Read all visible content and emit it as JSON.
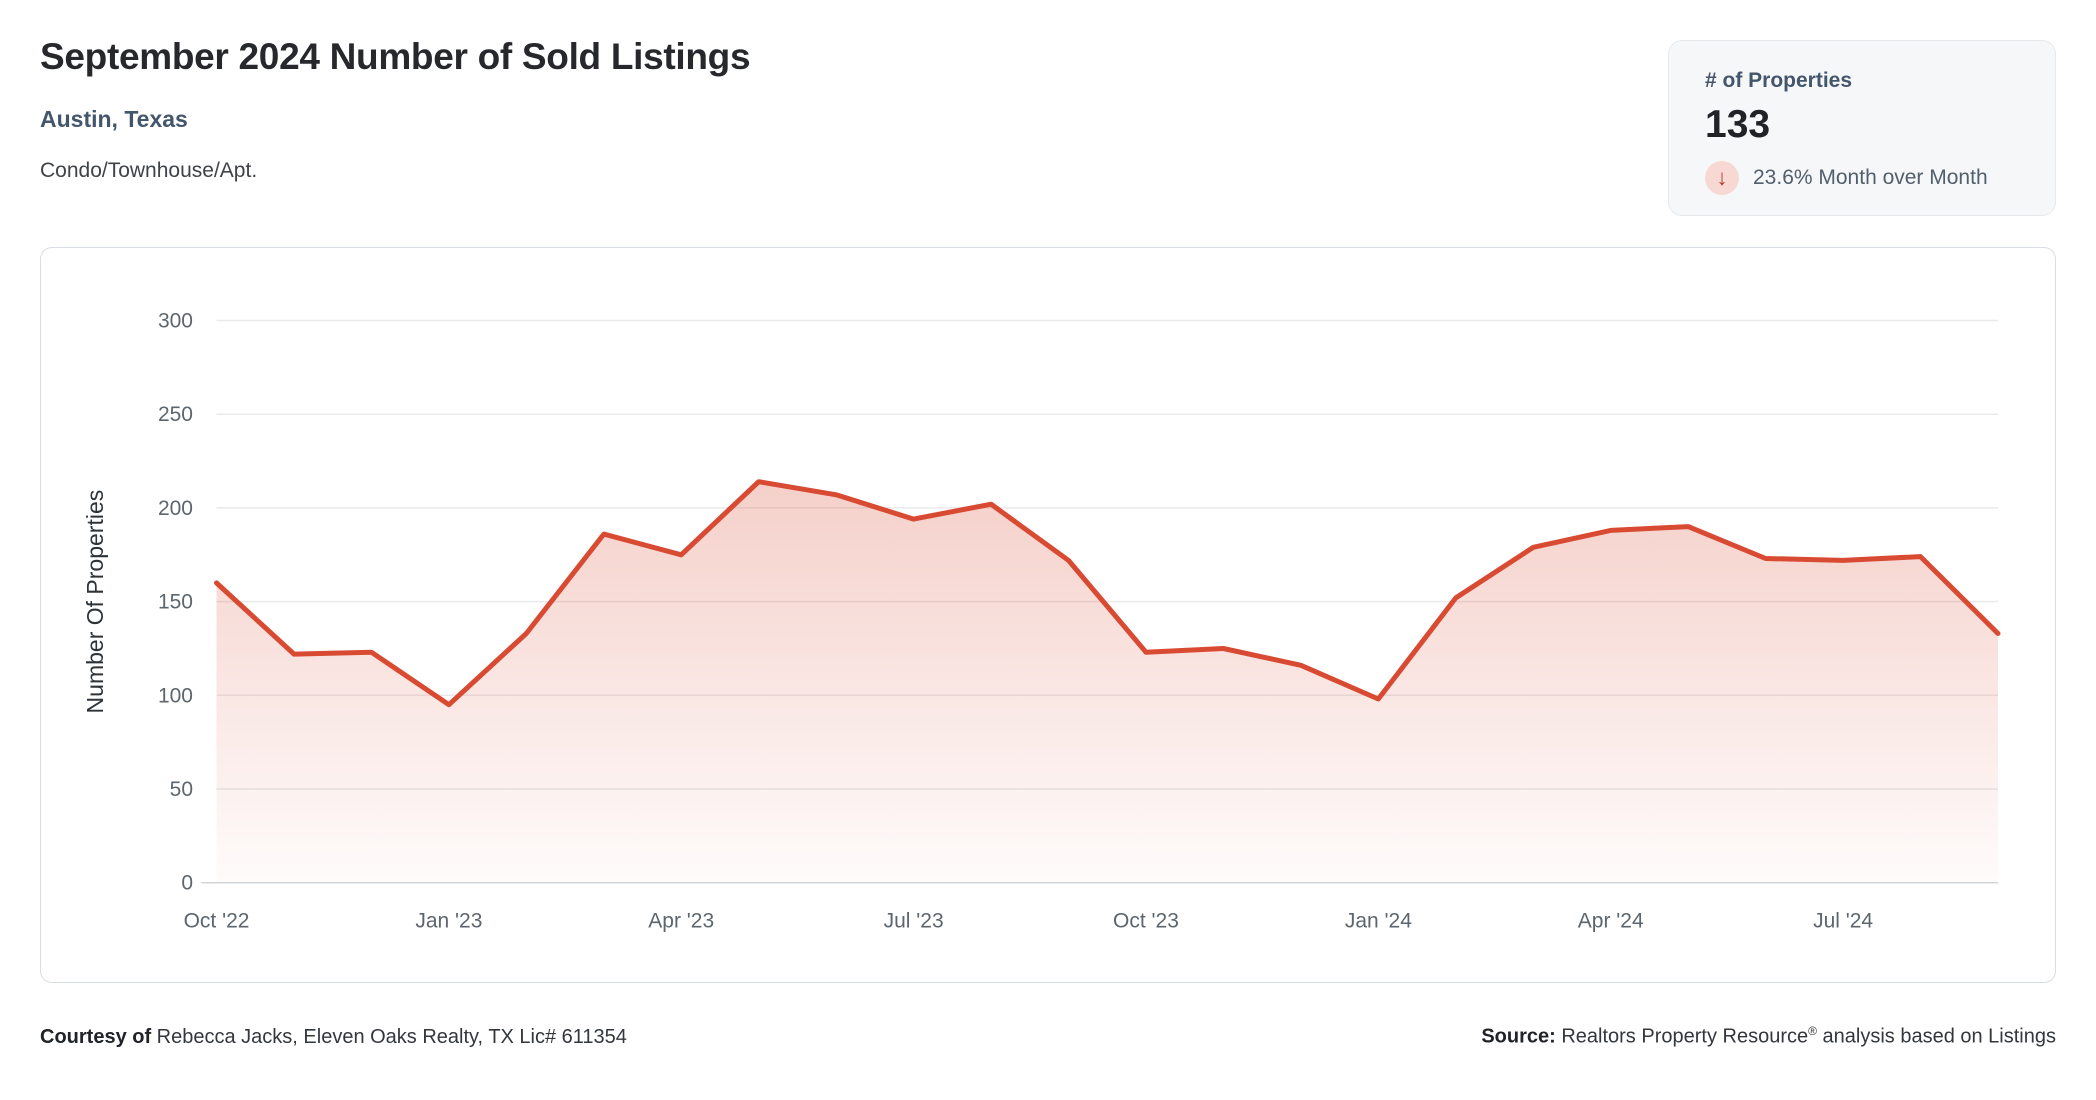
{
  "header": {
    "title": "September 2024 Number of Sold Listings",
    "subtitle": "Austin, Texas",
    "property_type": "Condo/Townhouse/Apt."
  },
  "stat_card": {
    "label": "# of Properties",
    "value": "133",
    "change_direction": "down",
    "change_arrow": "↓",
    "change_text": "23.6% Month over Month",
    "arrow_color": "#b23a2b",
    "arrow_bg_color": "#f8d8d2"
  },
  "chart_data": {
    "type": "area",
    "title": "",
    "x": [
      "Oct '22",
      "Nov '22",
      "Dec '22",
      "Jan '23",
      "Feb '23",
      "Mar '23",
      "Apr '23",
      "May '23",
      "Jun '23",
      "Jul '23",
      "Aug '23",
      "Sep '23",
      "Oct '23",
      "Nov '23",
      "Dec '23",
      "Jan '24",
      "Feb '24",
      "Mar '24",
      "Apr '24",
      "May '24",
      "Jun '24",
      "Jul '24",
      "Aug '24",
      "Sep '24"
    ],
    "values": [
      160,
      122,
      123,
      95,
      133,
      186,
      175,
      214,
      207,
      194,
      202,
      172,
      123,
      125,
      116,
      98,
      152,
      179,
      188,
      190,
      173,
      172,
      174,
      133
    ],
    "xlabel": "",
    "ylabel": "Number Of Properties",
    "ylim": [
      0,
      300
    ],
    "yticks": [
      0,
      50,
      100,
      150,
      200,
      250,
      300
    ],
    "xtick_every": 3,
    "grid": true,
    "legend": false,
    "line_color": "#d94a32",
    "area_color": "#d94a32",
    "grid_color": "#e9eaec",
    "axis_line_color": "#d3d6da",
    "tick_label_color": "#5d666e"
  },
  "footer": {
    "courtesy_bold": "Courtesy of",
    "courtesy_rest": " Rebecca Jacks, Eleven Oaks Realty, TX Lic# 611354",
    "source_bold": "Source:",
    "source_name": " Realtors Property Resource",
    "source_reg": "®",
    "source_rest": " analysis based on Listings"
  }
}
